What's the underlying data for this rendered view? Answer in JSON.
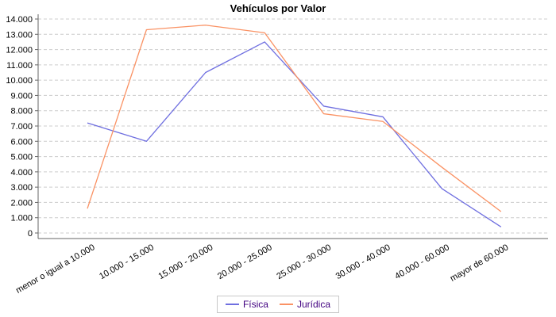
{
  "chart_data": {
    "type": "line",
    "title": "Vehículos por Valor",
    "categories": [
      "menor o igual a 10.000",
      "10.000 - 15.000",
      "15.000 - 20.000",
      "20.000 - 25.000",
      "25.000 - 30.000",
      "30.000 - 40.000",
      "40.000 - 60.000",
      "mayor de 60.000"
    ],
    "series": [
      {
        "name": "Física",
        "color": "#6f6fe0",
        "values": [
          7200,
          6000,
          10500,
          12500,
          8300,
          7600,
          2900,
          400
        ]
      },
      {
        "name": "Jurídica",
        "color": "#fa9264",
        "values": [
          1600,
          13300,
          13600,
          13100,
          7800,
          7300,
          4300,
          1400
        ]
      }
    ],
    "xlabel": "",
    "ylabel": "",
    "ylim": [
      0,
      14000
    ],
    "ytick_step": 1000,
    "ytick_labels": [
      "0",
      "1.000",
      "2.000",
      "3.000",
      "4.000",
      "5.000",
      "6.000",
      "7.000",
      "8.000",
      "9.000",
      "10.000",
      "11.000",
      "12.000",
      "13.000",
      "14.000"
    ],
    "grid": "horizontal-dashed",
    "gridline_color": "#cccccc",
    "axis_color": "#666666",
    "legend_position": "bottom",
    "legend_text_color": "#400080",
    "x_label_rotation_deg": -30
  }
}
